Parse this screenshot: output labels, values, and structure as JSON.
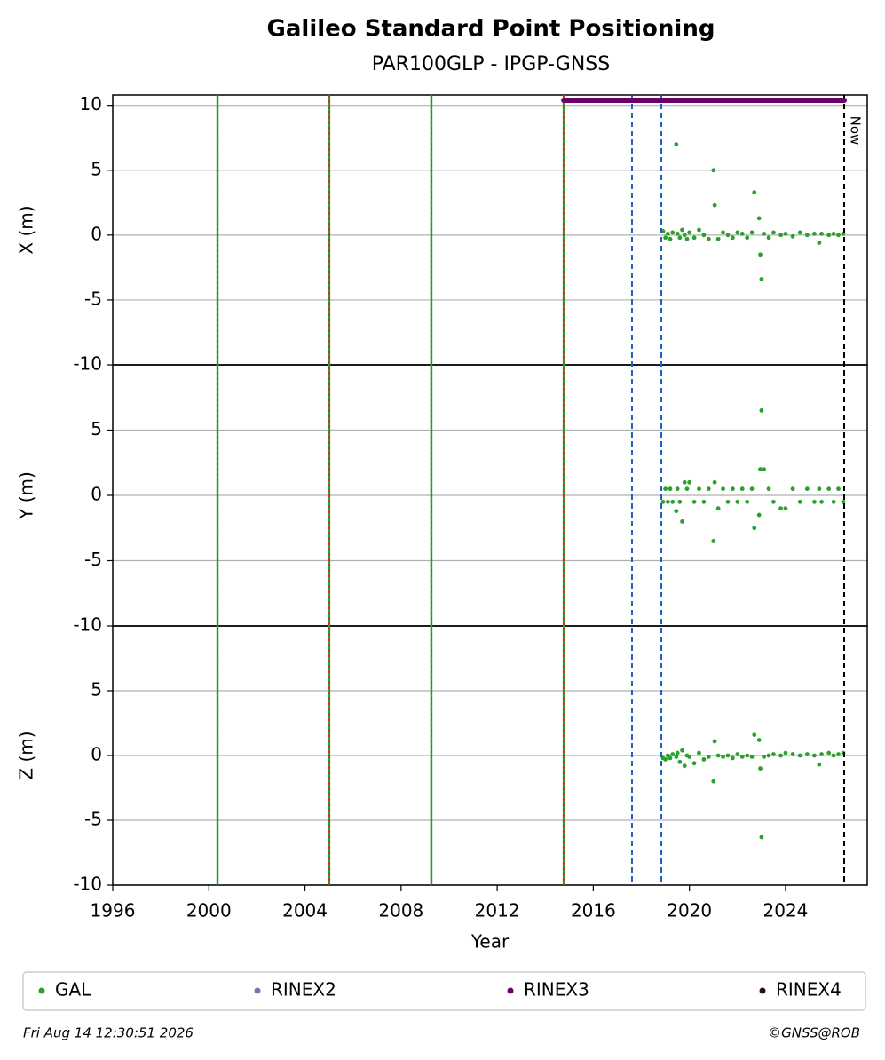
{
  "title": "Galileo Standard Point Positioning",
  "subtitle": "PAR100GLP - IPGP-GNSS",
  "vlines": {
    "station_changes": [
      2000.36,
      2005.01,
      2009.26,
      2014.77
    ],
    "receiver_changes": [
      2017.61,
      2018.83
    ],
    "now": 2026.44,
    "now_label": "Now",
    "rinex3_span": [
      2014.77,
      2026.44
    ]
  },
  "legend": [
    {
      "name": "GAL",
      "color": "#2ca02c"
    },
    {
      "name": "RINEX2",
      "color": "#8073ac"
    },
    {
      "name": "RINEX3",
      "color": "#6a0068"
    },
    {
      "name": "RINEX4",
      "color": "#2d0a22"
    }
  ],
  "footer": {
    "date": "Fri Aug 14 12:30:51 2026",
    "credit": "©GNSS@ROB"
  },
  "chart_data": [
    {
      "type": "scatter",
      "ylabel": "X (m)",
      "xlim": [
        1996,
        2027.4
      ],
      "ylim": [
        -10,
        10.8
      ],
      "yticks": [
        -10,
        -5,
        0,
        5,
        10
      ],
      "grid": true,
      "x": [
        2018.9,
        2019.0,
        2019.1,
        2019.2,
        2019.3,
        2019.45,
        2019.5,
        2019.6,
        2019.7,
        2019.8,
        2019.9,
        2020.0,
        2020.2,
        2020.4,
        2020.6,
        2020.8,
        2021.0,
        2021.05,
        2021.2,
        2021.4,
        2021.6,
        2021.8,
        2022.0,
        2022.2,
        2022.4,
        2022.6,
        2022.7,
        2022.9,
        2022.95,
        2023.0,
        2023.1,
        2023.3,
        2023.5,
        2023.8,
        2024.0,
        2024.3,
        2024.6,
        2024.9,
        2025.2,
        2025.4,
        2025.5,
        2025.8,
        2026.0,
        2026.2,
        2026.4
      ],
      "series": [
        {
          "color": "#2ca02c",
          "values": [
            0.3,
            -0.2,
            0.1,
            -0.3,
            0.2,
            7.0,
            0.1,
            -0.2,
            0.4,
            0.0,
            -0.3,
            0.2,
            -0.2,
            0.4,
            0.0,
            -0.3,
            5.0,
            2.3,
            -0.3,
            0.2,
            0.0,
            -0.2,
            0.2,
            0.1,
            -0.2,
            0.2,
            3.3,
            1.3,
            -1.5,
            -3.4,
            0.1,
            -0.2,
            0.2,
            0.0,
            0.1,
            -0.1,
            0.2,
            0.0,
            0.1,
            -0.6,
            0.1,
            0.0,
            0.1,
            0.0,
            0.1
          ]
        }
      ]
    },
    {
      "type": "scatter",
      "ylabel": "Y (m)",
      "xlim": [
        1996,
        2027.4
      ],
      "ylim": [
        -10,
        10
      ],
      "yticks": [
        -10,
        -5,
        0,
        5
      ],
      "grid": true,
      "x": [
        2018.9,
        2019.0,
        2019.1,
        2019.2,
        2019.3,
        2019.45,
        2019.5,
        2019.6,
        2019.7,
        2019.8,
        2019.9,
        2020.0,
        2020.2,
        2020.4,
        2020.6,
        2020.8,
        2021.0,
        2021.05,
        2021.2,
        2021.4,
        2021.6,
        2021.8,
        2022.0,
        2022.2,
        2022.4,
        2022.6,
        2022.7,
        2022.9,
        2022.95,
        2023.0,
        2023.1,
        2023.3,
        2023.5,
        2023.8,
        2024.0,
        2024.3,
        2024.6,
        2024.9,
        2025.2,
        2025.4,
        2025.5,
        2025.8,
        2026.0,
        2026.2,
        2026.4
      ],
      "series": [
        {
          "color": "#2ca02c",
          "values": [
            -0.5,
            0.5,
            -0.5,
            0.5,
            -0.5,
            -1.2,
            0.5,
            -0.5,
            -2.0,
            1.0,
            0.5,
            1.0,
            -0.5,
            0.5,
            -0.5,
            0.5,
            -3.5,
            1.0,
            -1.0,
            0.5,
            -0.5,
            0.5,
            -0.5,
            0.5,
            -0.5,
            0.5,
            -2.5,
            -1.5,
            2.0,
            6.5,
            2.0,
            0.5,
            -0.5,
            -1.0,
            -1.0,
            0.5,
            -0.5,
            0.5,
            -0.5,
            0.5,
            -0.5,
            0.5,
            -0.5,
            0.5,
            -0.5
          ]
        }
      ]
    },
    {
      "type": "scatter",
      "ylabel": "Z (m)",
      "xlabel": "Year",
      "xlim": [
        1996,
        2027.4
      ],
      "xticks": [
        1996,
        2000,
        2004,
        2008,
        2012,
        2016,
        2020,
        2024
      ],
      "ylim": [
        -10,
        10
      ],
      "yticks": [
        -10,
        -5,
        0,
        5
      ],
      "grid": true,
      "x": [
        2018.9,
        2019.0,
        2019.1,
        2019.2,
        2019.3,
        2019.45,
        2019.5,
        2019.6,
        2019.7,
        2019.8,
        2019.9,
        2020.0,
        2020.2,
        2020.4,
        2020.6,
        2020.8,
        2021.0,
        2021.05,
        2021.2,
        2021.4,
        2021.6,
        2021.8,
        2022.0,
        2022.2,
        2022.4,
        2022.6,
        2022.7,
        2022.9,
        2022.95,
        2023.0,
        2023.1,
        2023.3,
        2023.5,
        2023.8,
        2024.0,
        2024.3,
        2024.6,
        2024.9,
        2025.2,
        2025.4,
        2025.5,
        2025.8,
        2026.0,
        2026.2,
        2026.4
      ],
      "series": [
        {
          "color": "#2ca02c",
          "values": [
            -0.2,
            -0.3,
            0.0,
            -0.2,
            0.1,
            -0.1,
            0.2,
            -0.5,
            0.4,
            -0.8,
            0.0,
            -0.1,
            -0.6,
            0.2,
            -0.3,
            -0.1,
            -2.0,
            1.1,
            0.0,
            -0.1,
            0.0,
            -0.2,
            0.1,
            -0.1,
            0.0,
            -0.1,
            1.6,
            1.2,
            -1.0,
            -6.3,
            -0.1,
            0.0,
            0.1,
            0.0,
            0.2,
            0.1,
            0.0,
            0.1,
            0.0,
            -0.7,
            0.1,
            0.2,
            0.0,
            0.1,
            0.2
          ]
        }
      ]
    }
  ]
}
